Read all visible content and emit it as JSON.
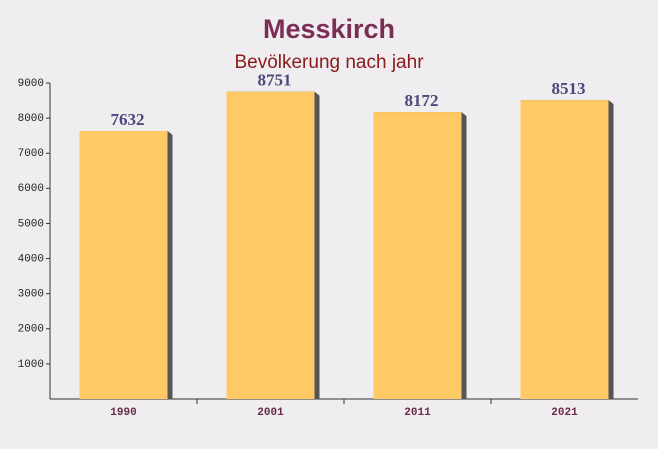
{
  "chart_data": {
    "type": "bar",
    "title": "Messkirch",
    "subtitle": "Bevölkerung nach jahr",
    "categories": [
      "1990",
      "2001",
      "2011",
      "2021"
    ],
    "values": [
      7632,
      8751,
      8172,
      8513
    ],
    "color": "#ffc966",
    "ylim": [
      0,
      9000
    ],
    "yticks": [
      1000,
      2000,
      3000,
      4000,
      5000,
      6000,
      7000,
      8000,
      9000
    ]
  }
}
